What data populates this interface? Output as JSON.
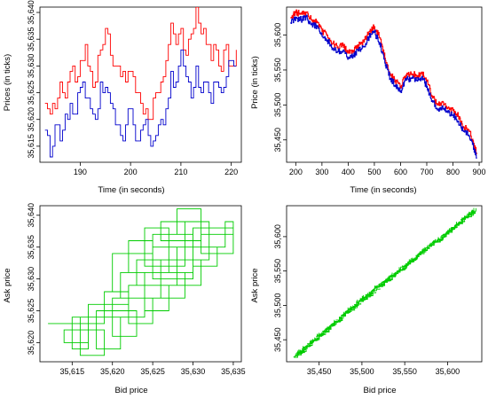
{
  "colors": {
    "ask": "#ff0000",
    "bid": "#0000cc",
    "scatter": "#00cc00",
    "axis": "#000000"
  },
  "chart_data": [
    {
      "id": "p1",
      "type": "line",
      "xlabel": "Time (in seconds)",
      "ylabel": "Prices (in ticks)",
      "xlim": [
        182,
        222
      ],
      "ylim": [
        35612,
        35641
      ],
      "xticks": [
        190,
        200,
        210,
        220
      ],
      "yticks": [
        35615,
        35620,
        35625,
        35630,
        35635,
        35640
      ],
      "xtick_labels": [
        "190",
        "200",
        "210",
        "220"
      ],
      "ytick_labels": [
        "35,615",
        "35,620",
        "35,625",
        "35,630",
        "35,635",
        "35,640"
      ],
      "series": [
        {
          "color": "#ff0000",
          "x": [
            183,
            184,
            185,
            186,
            187,
            188,
            189,
            190,
            191,
            192,
            193,
            194,
            195,
            196,
            197,
            198,
            199,
            200,
            201,
            202,
            203,
            204,
            205,
            206,
            207,
            208,
            209,
            210,
            211,
            212,
            213,
            214,
            215,
            216,
            217,
            218,
            219,
            220,
            221
          ],
          "y": [
            35623,
            35621,
            35622,
            35627,
            35624,
            35629,
            35627,
            35631,
            35634,
            35629,
            35627,
            35633,
            35637,
            35632,
            35630,
            35628,
            35627,
            35629,
            35625,
            35623,
            35622,
            35620,
            35625,
            35627,
            35631,
            35638,
            35634,
            35637,
            35632,
            35636,
            35641,
            35636,
            35634,
            35631,
            35633,
            35629,
            35634,
            35630,
            35633
          ]
        },
        {
          "color": "#0000cc",
          "x": [
            183,
            184,
            185,
            186,
            187,
            188,
            189,
            190,
            191,
            192,
            193,
            194,
            195,
            196,
            197,
            198,
            199,
            200,
            201,
            202,
            203,
            204,
            205,
            206,
            207,
            208,
            209,
            210,
            211,
            212,
            213,
            214,
            215,
            216,
            217,
            218,
            219,
            220,
            221
          ],
          "y": [
            35618,
            35613,
            35619,
            35616,
            35621,
            35623,
            35621,
            35626,
            35624,
            35622,
            35620,
            35627,
            35626,
            35623,
            35619,
            35617,
            35619,
            35622,
            35616,
            35618,
            35620,
            35615,
            35617,
            35620,
            35622,
            35629,
            35627,
            35633,
            35628,
            35624,
            35630,
            35625,
            35627,
            35623,
            35627,
            35625,
            35628,
            35631,
            35630
          ]
        }
      ]
    },
    {
      "id": "p2",
      "type": "line",
      "xlabel": "Time (in seconds)",
      "ylabel": "Price (in ticks)",
      "xlim": [
        165,
        910
      ],
      "ylim": [
        35418,
        35640
      ],
      "xticks": [
        200,
        300,
        400,
        500,
        600,
        700,
        800,
        900
      ],
      "yticks": [
        35450,
        35500,
        35550,
        35600
      ],
      "xtick_labels": [
        "200",
        "300",
        "400",
        "500",
        "600",
        "700",
        "800",
        "900"
      ],
      "ytick_labels": [
        "35,450",
        "35,500",
        "35,550",
        "35,600"
      ],
      "series": [
        {
          "color": "#ff0000",
          "x": [
            180,
            200,
            220,
            240,
            260,
            280,
            300,
            320,
            340,
            360,
            380,
            400,
            420,
            440,
            460,
            480,
            500,
            520,
            540,
            560,
            580,
            600,
            620,
            640,
            660,
            680,
            700,
            720,
            740,
            760,
            780,
            800,
            820,
            840,
            860,
            880,
            890
          ],
          "y": [
            35625,
            35632,
            35630,
            35633,
            35622,
            35620,
            35605,
            35600,
            35588,
            35583,
            35585,
            35574,
            35578,
            35585,
            35590,
            35605,
            35612,
            35596,
            35567,
            35545,
            35535,
            35527,
            35543,
            35545,
            35542,
            35547,
            35534,
            35513,
            35500,
            35505,
            35496,
            35492,
            35484,
            35469,
            35464,
            35445,
            35432
          ]
        },
        {
          "color": "#0000cc",
          "x": [
            180,
            200,
            220,
            240,
            260,
            280,
            300,
            320,
            340,
            360,
            380,
            400,
            420,
            440,
            460,
            480,
            500,
            520,
            540,
            560,
            580,
            600,
            620,
            640,
            660,
            680,
            700,
            720,
            740,
            760,
            780,
            800,
            820,
            840,
            860,
            880,
            890
          ],
          "y": [
            35618,
            35625,
            35622,
            35626,
            35615,
            35612,
            35598,
            35593,
            35581,
            35576,
            35578,
            35567,
            35571,
            35578,
            35583,
            35598,
            35604,
            35589,
            35560,
            35538,
            35528,
            35520,
            35536,
            35538,
            35535,
            35540,
            35527,
            35506,
            35493,
            35498,
            35489,
            35485,
            35477,
            35462,
            35457,
            35438,
            35425
          ]
        }
      ]
    },
    {
      "id": "p3",
      "type": "line",
      "xlabel": "Bid price",
      "ylabel": "Ask price",
      "xlim": [
        35611,
        35636
      ],
      "ylim": [
        35617,
        35641.5
      ],
      "xticks": [
        35615,
        35620,
        35625,
        35630,
        35635
      ],
      "yticks": [
        35620,
        35625,
        35630,
        35635,
        35640
      ],
      "xtick_labels": [
        "35,615",
        "35,620",
        "35,625",
        "35,630",
        "35,635"
      ],
      "ytick_labels": [
        "35,620",
        "35,625",
        "35,630",
        "35,635",
        "35,640"
      ],
      "series": [
        {
          "color": "#00cc00",
          "x": [
            35612,
            35619,
            35615,
            35617,
            35622,
            35619,
            35624,
            35621,
            35626,
            35623,
            35628,
            35625,
            35630,
            35627,
            35632,
            35629,
            35634,
            35631,
            35635,
            35630,
            35633,
            35628,
            35631,
            35626,
            35629,
            35624,
            35627,
            35622,
            35625,
            35620,
            35623,
            35618,
            35621,
            35616,
            35619,
            35614,
            35617,
            35622,
            35620,
            35625,
            35622,
            35627,
            35624,
            35629,
            35626,
            35631,
            35628,
            35625,
            35630,
            35632,
            35635,
            35634
          ],
          "y": [
            35623,
            35624,
            35619,
            35626,
            35628,
            35624,
            35631,
            35627,
            35633,
            35629,
            35635,
            35631,
            35637,
            35633,
            35639,
            35635,
            35637,
            35634,
            35638,
            35632,
            35635,
            35629,
            35633,
            35627,
            35631,
            35625,
            35629,
            35623,
            35627,
            35621,
            35625,
            35619,
            35624,
            35618,
            35622,
            35620,
            35626,
            35628,
            35634,
            35636,
            35631,
            35638,
            35632,
            35639,
            35636,
            35641,
            35637,
            35630,
            35633,
            35637,
            35639,
            35636
          ]
        }
      ]
    },
    {
      "id": "p4",
      "type": "scatter",
      "xlabel": "Bid price",
      "ylabel": "Ask price",
      "xlim": [
        35412,
        35640
      ],
      "ylim": [
        35418,
        35645
      ],
      "xticks": [
        35450,
        35500,
        35550,
        35600
      ],
      "yticks": [
        35450,
        35500,
        35550,
        35600
      ],
      "xtick_labels": [
        "35,450",
        "35,500",
        "35,550",
        "35,600"
      ],
      "ytick_labels": [
        "35,450",
        "35,500",
        "35,550",
        "35,600"
      ],
      "series": [
        {
          "color": "#00cc00",
          "x": [
            35421,
            35430,
            35440,
            35450,
            35460,
            35470,
            35480,
            35490,
            35500,
            35510,
            35520,
            35530,
            35540,
            35550,
            35560,
            35570,
            35580,
            35590,
            35600,
            35610,
            35620,
            35630
          ],
          "y": [
            35425,
            35434,
            35446,
            35455,
            35466,
            35476,
            35488,
            35497,
            35508,
            35517,
            35528,
            35537,
            35547,
            35557,
            35567,
            35577,
            35587,
            35596,
            35606,
            35616,
            35627,
            35636
          ]
        }
      ]
    }
  ]
}
